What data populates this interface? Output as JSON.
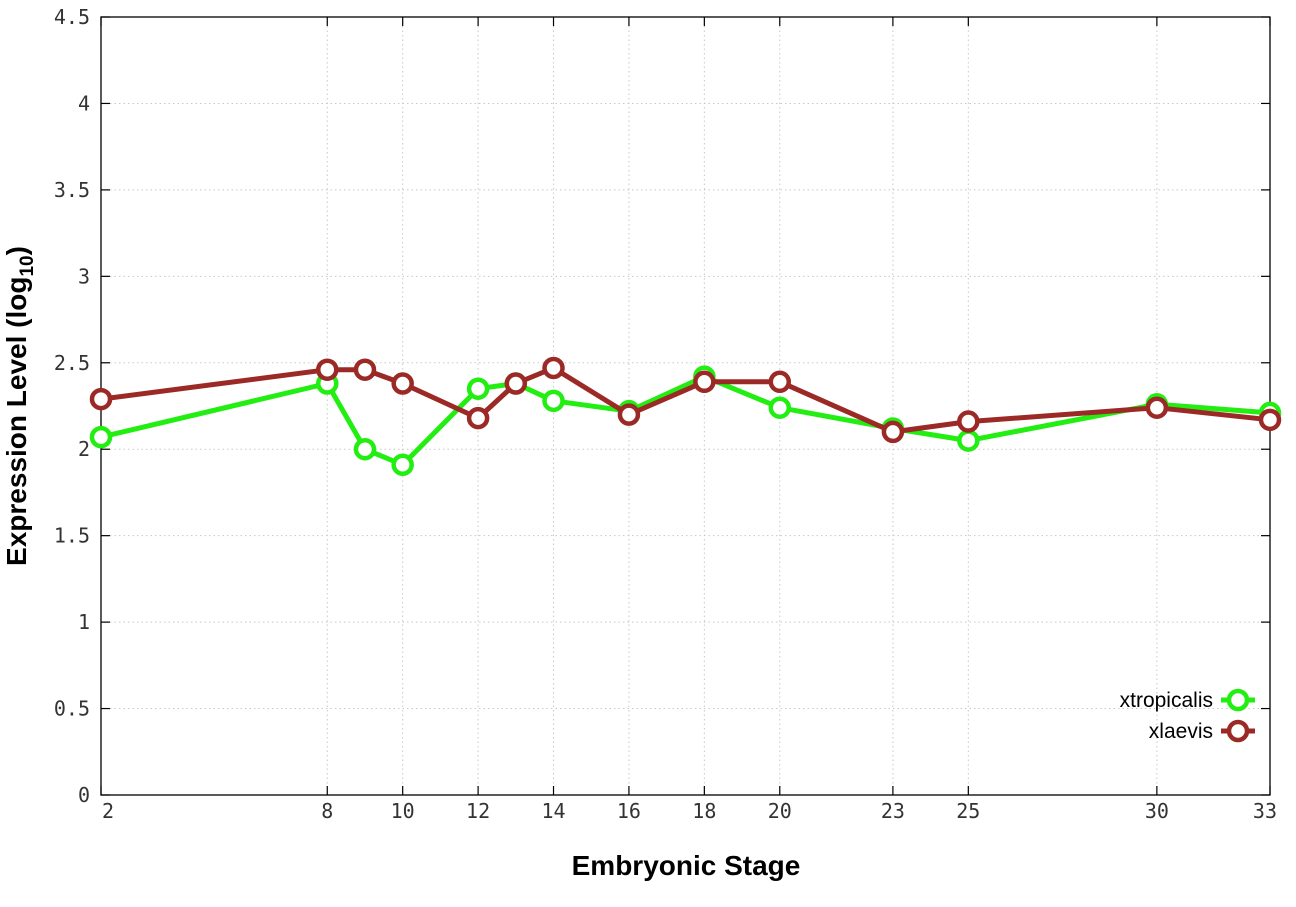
{
  "chart_data": {
    "type": "line",
    "title": "",
    "xlabel": "Embryonic Stage",
    "ylabel_main": "Expression Level (log",
    "ylabel_sub": "10",
    "ylabel_close": ")",
    "xlim": [
      2,
      33
    ],
    "ylim": [
      0,
      4.5
    ],
    "grid": true,
    "legend_position": "bottom-right",
    "x_ticks": [
      2,
      8,
      10,
      12,
      14,
      16,
      18,
      20,
      23,
      25,
      30,
      33
    ],
    "x_tick_labels": [
      "2",
      "8",
      "10",
      "12",
      "14",
      "16",
      "18",
      "20",
      "23",
      "25",
      "30",
      "33"
    ],
    "y_ticks": [
      0,
      0.5,
      1,
      1.5,
      2,
      2.5,
      3,
      3.5,
      4,
      4.5
    ],
    "y_tick_labels": [
      "0",
      "0.5",
      "1",
      "1.5",
      "2",
      "2.5",
      "3",
      "3.5",
      "4",
      "4.5"
    ],
    "x": [
      2,
      8,
      9,
      10,
      12,
      13,
      14,
      16,
      18,
      20,
      23,
      25,
      30,
      33
    ],
    "series": [
      {
        "name": "xtropicalis",
        "color": "#22ee11",
        "values": [
          2.07,
          2.38,
          2.0,
          1.91,
          2.35,
          2.38,
          2.28,
          2.22,
          2.42,
          2.24,
          2.12,
          2.05,
          2.26,
          2.21
        ]
      },
      {
        "name": "xlaevis",
        "color": "#9b2a26",
        "values": [
          2.29,
          2.46,
          2.46,
          2.38,
          2.18,
          2.38,
          2.47,
          2.2,
          2.39,
          2.39,
          2.1,
          2.16,
          2.24,
          2.17
        ]
      }
    ]
  }
}
